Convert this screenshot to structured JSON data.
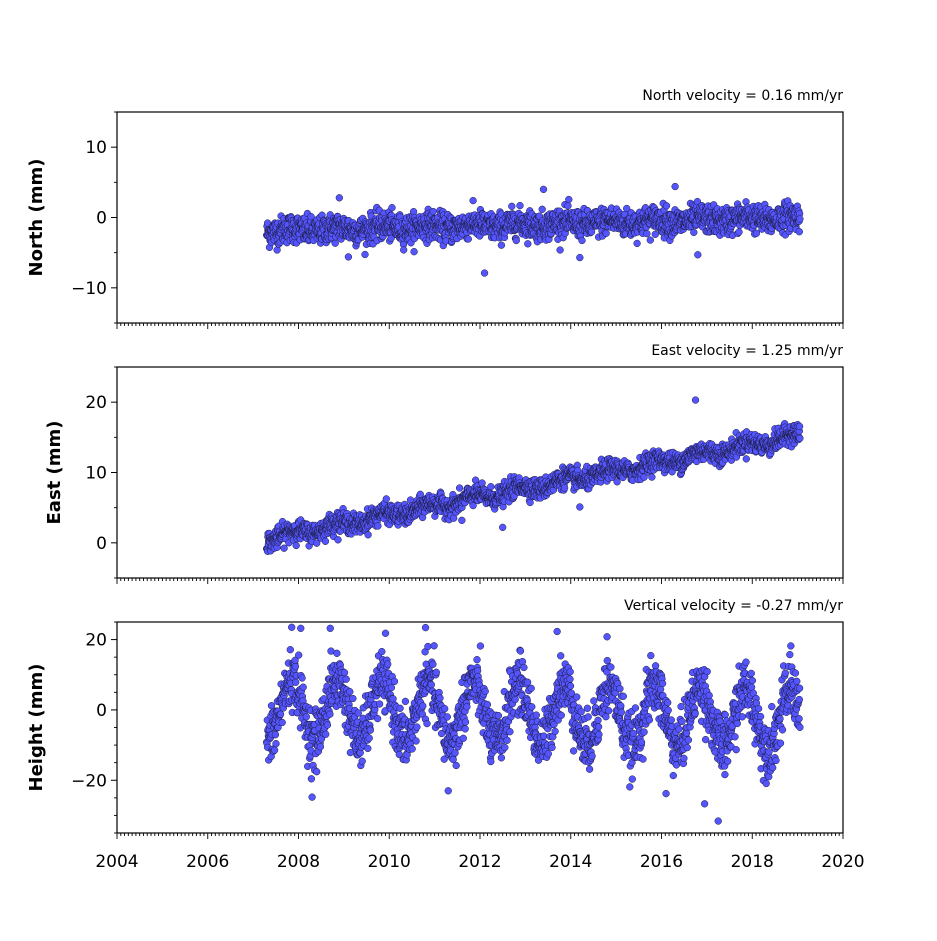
{
  "chart_data": [
    {
      "type": "scatter",
      "title": "North velocity = 0.16 mm/yr",
      "xlabel": "",
      "ylabel": "North (mm)",
      "xlim": [
        2004,
        2020
      ],
      "ylim": [
        -15,
        15
      ],
      "yticks": [
        10,
        0,
        -10
      ],
      "ytick_labels": [
        "10",
        "0",
        "−10"
      ],
      "xticks": [
        2004,
        2006,
        2008,
        2010,
        2012,
        2014,
        2016,
        2018,
        2020
      ],
      "xtick_labels": [],
      "grid": false,
      "model": {
        "start": 2007.3,
        "end": 2019.05,
        "velocity": 0.16,
        "offset_at_start": -1.9,
        "seasonal_amplitude": 0.3,
        "noise": 1.0
      },
      "outliers": [
        {
          "x": 2008.9,
          "y": 2.8
        },
        {
          "x": 2012.1,
          "y": -7.9
        },
        {
          "x": 2013.4,
          "y": 4.0
        },
        {
          "x": 2016.3,
          "y": 4.4
        },
        {
          "x": 2016.8,
          "y": -5.3
        },
        {
          "x": 2014.2,
          "y": -5.7
        },
        {
          "x": 2009.1,
          "y": -5.6
        }
      ]
    },
    {
      "type": "scatter",
      "title": "East velocity = 1.25 mm/yr",
      "xlabel": "",
      "ylabel": "East (mm)",
      "xlim": [
        2004,
        2020
      ],
      "ylim": [
        -5,
        25
      ],
      "yticks": [
        20,
        10,
        0
      ],
      "ytick_labels": [
        "20",
        "10",
        "0"
      ],
      "xticks": [
        2004,
        2006,
        2008,
        2010,
        2012,
        2014,
        2016,
        2018,
        2020
      ],
      "xtick_labels": [],
      "grid": false,
      "model": {
        "start": 2007.3,
        "end": 2019.05,
        "velocity": 1.25,
        "offset_at_start": 0.6,
        "seasonal_amplitude": 0.5,
        "noise": 0.7
      },
      "outliers": [
        {
          "x": 2016.75,
          "y": 20.3
        },
        {
          "x": 2012.5,
          "y": 2.2
        },
        {
          "x": 2014.2,
          "y": 5.1
        },
        {
          "x": 2011.6,
          "y": 3.2
        }
      ]
    },
    {
      "type": "scatter",
      "title": "Vertical velocity = -0.27 mm/yr",
      "xlabel": "",
      "ylabel": "Height (mm)",
      "xlim": [
        2004,
        2020
      ],
      "ylim": [
        -35,
        25
      ],
      "yticks": [
        20,
        0,
        -20
      ],
      "ytick_labels": [
        "20",
        "0",
        "−20"
      ],
      "xticks": [
        2004,
        2006,
        2008,
        2010,
        2012,
        2014,
        2016,
        2018,
        2020
      ],
      "xtick_labels": [
        "2004",
        "2006",
        "2008",
        "2010",
        "2012",
        "2014",
        "2016",
        "2018",
        "2020"
      ],
      "grid": false,
      "model": {
        "start": 2007.3,
        "end": 2019.05,
        "velocity": -0.27,
        "offset_at_start": 0.5,
        "seasonal_amplitude": 8.5,
        "noise": 4.0
      },
      "outliers": [
        {
          "x": 2007.85,
          "y": 23.5
        },
        {
          "x": 2008.05,
          "y": 23.2
        },
        {
          "x": 2008.7,
          "y": 23.2
        },
        {
          "x": 2010.8,
          "y": 23.4
        },
        {
          "x": 2013.7,
          "y": 22.3
        },
        {
          "x": 2014.8,
          "y": 20.8
        },
        {
          "x": 2017.25,
          "y": -31.6
        },
        {
          "x": 2016.95,
          "y": -26.7
        },
        {
          "x": 2008.3,
          "y": -24.8
        },
        {
          "x": 2016.1,
          "y": -23.8
        },
        {
          "x": 2011.3,
          "y": -23.0
        },
        {
          "x": 2018.85,
          "y": 18.2
        }
      ]
    }
  ],
  "colors": {
    "marker_fill": "#5555ff",
    "marker_edge": "#1a1a3a",
    "axes": "#000000"
  }
}
